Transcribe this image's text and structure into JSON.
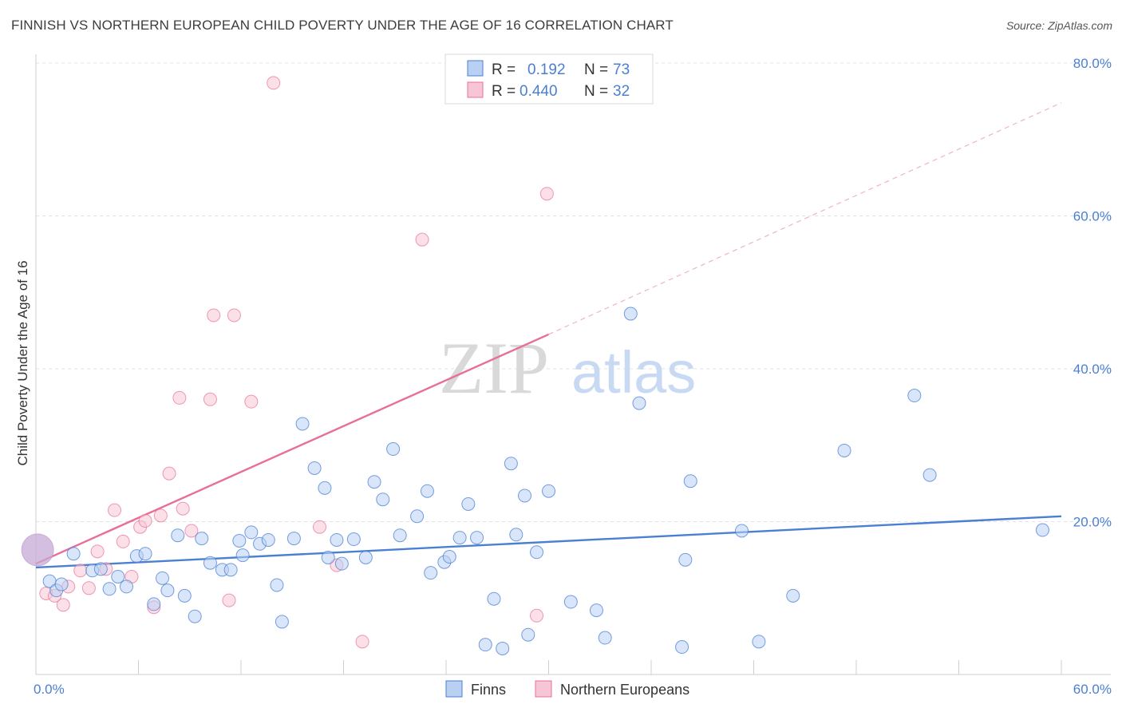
{
  "header": {
    "title": "FINNISH VS NORTHERN EUROPEAN CHILD POVERTY UNDER THE AGE OF 16 CORRELATION CHART",
    "source": "Source: ZipAtlas.com"
  },
  "watermark": {
    "zip": "ZIP",
    "atlas": "atlas"
  },
  "legend": {
    "rows": [
      {
        "r_label": "R =",
        "r_value": "0.192",
        "n_label": "N =",
        "n_value": "73"
      },
      {
        "r_label": "R =",
        "r_value": "0.440",
        "n_label": "N =",
        "n_value": "32"
      }
    ]
  },
  "chart_data": {
    "type": "scatter",
    "title": "FINNISH VS NORTHERN EUROPEAN CHILD POVERTY UNDER THE AGE OF 16 CORRELATION CHART",
    "xlabel": "",
    "ylabel": "Child Poverty Under the Age of 16",
    "xlim": [
      0,
      60
    ],
    "ylim": [
      0,
      80
    ],
    "x_tick_labels": [
      "0.0%",
      "60.0%"
    ],
    "y_ticks": [
      20,
      40,
      60,
      80
    ],
    "y_tick_labels": [
      "20.0%",
      "40.0%",
      "60.0%",
      "80.0%"
    ],
    "grid": true,
    "legend_position": "bottom-center",
    "colors": {
      "finns": "#4a7fd4",
      "northern": "#e86f97",
      "finns_fill": "#b9d0f2",
      "northern_fill": "#f7c6d6"
    },
    "series": [
      {
        "name": "Finns",
        "r": 0.192,
        "n": 73,
        "trend": {
          "x0": 0,
          "y0": 14.0,
          "x1": 60,
          "y1": 20.7
        },
        "points": [
          [
            0.8,
            12.2
          ],
          [
            1.2,
            11.0
          ],
          [
            1.5,
            11.8
          ],
          [
            2.2,
            15.8
          ],
          [
            3.3,
            13.6
          ],
          [
            3.8,
            13.8
          ],
          [
            4.3,
            11.2
          ],
          [
            4.8,
            12.8
          ],
          [
            5.3,
            11.5
          ],
          [
            5.9,
            15.5
          ],
          [
            6.4,
            15.8
          ],
          [
            6.9,
            9.2
          ],
          [
            7.4,
            12.6
          ],
          [
            7.7,
            11.0
          ],
          [
            8.3,
            18.2
          ],
          [
            8.7,
            10.3
          ],
          [
            9.3,
            7.6
          ],
          [
            9.7,
            17.8
          ],
          [
            10.2,
            14.6
          ],
          [
            10.9,
            13.7
          ],
          [
            11.4,
            13.7
          ],
          [
            11.9,
            17.5
          ],
          [
            12.1,
            15.6
          ],
          [
            12.6,
            18.6
          ],
          [
            13.1,
            17.1
          ],
          [
            13.6,
            17.6
          ],
          [
            14.1,
            11.7
          ],
          [
            14.4,
            6.9
          ],
          [
            15.1,
            17.8
          ],
          [
            15.6,
            32.8
          ],
          [
            16.3,
            27.0
          ],
          [
            16.9,
            24.4
          ],
          [
            17.1,
            15.3
          ],
          [
            17.6,
            17.6
          ],
          [
            17.9,
            14.5
          ],
          [
            18.6,
            17.7
          ],
          [
            19.3,
            15.3
          ],
          [
            19.8,
            25.2
          ],
          [
            20.3,
            22.9
          ],
          [
            20.9,
            29.5
          ],
          [
            21.3,
            18.2
          ],
          [
            22.3,
            20.7
          ],
          [
            22.9,
            24.0
          ],
          [
            23.1,
            13.3
          ],
          [
            23.9,
            14.7
          ],
          [
            24.2,
            15.4
          ],
          [
            24.8,
            17.9
          ],
          [
            25.3,
            22.3
          ],
          [
            25.8,
            17.9
          ],
          [
            26.3,
            3.9
          ],
          [
            26.8,
            9.9
          ],
          [
            27.3,
            3.4
          ],
          [
            27.8,
            27.6
          ],
          [
            28.1,
            18.3
          ],
          [
            28.6,
            23.4
          ],
          [
            28.8,
            5.2
          ],
          [
            29.3,
            16.0
          ],
          [
            30.0,
            24.0
          ],
          [
            31.3,
            9.5
          ],
          [
            32.8,
            8.4
          ],
          [
            33.3,
            4.8
          ],
          [
            34.8,
            47.2
          ],
          [
            35.3,
            35.5
          ],
          [
            37.8,
            3.6
          ],
          [
            38.0,
            15.0
          ],
          [
            38.3,
            25.3
          ],
          [
            41.3,
            18.8
          ],
          [
            42.3,
            4.3
          ],
          [
            44.3,
            10.3
          ],
          [
            47.3,
            29.3
          ],
          [
            51.4,
            36.5
          ],
          [
            52.3,
            26.1
          ],
          [
            58.9,
            18.9
          ]
        ]
      },
      {
        "name": "Northern Europeans",
        "r": 0.44,
        "n": 32,
        "trend": {
          "x0": 0,
          "y0": 14.5,
          "x1": 30,
          "y1": 44.5
        },
        "trend_dashed": {
          "x0": 30,
          "y0": 44.5,
          "x1": 60,
          "y1": 74.8
        },
        "points": [
          [
            0.6,
            10.6
          ],
          [
            1.1,
            10.3
          ],
          [
            1.6,
            9.1
          ],
          [
            1.9,
            11.5
          ],
          [
            2.6,
            13.6
          ],
          [
            3.1,
            11.3
          ],
          [
            3.6,
            16.1
          ],
          [
            4.1,
            13.8
          ],
          [
            4.6,
            21.5
          ],
          [
            5.1,
            17.4
          ],
          [
            5.6,
            12.8
          ],
          [
            6.1,
            19.3
          ],
          [
            6.4,
            20.1
          ],
          [
            6.9,
            8.8
          ],
          [
            7.3,
            20.8
          ],
          [
            7.8,
            26.3
          ],
          [
            8.4,
            36.2
          ],
          [
            8.6,
            21.7
          ],
          [
            9.1,
            18.8
          ],
          [
            10.2,
            36.0
          ],
          [
            10.4,
            47.0
          ],
          [
            11.3,
            9.7
          ],
          [
            11.6,
            47.0
          ],
          [
            12.6,
            35.7
          ],
          [
            13.9,
            77.4
          ],
          [
            16.6,
            19.3
          ],
          [
            17.6,
            14.3
          ],
          [
            19.1,
            4.3
          ],
          [
            22.6,
            56.9
          ],
          [
            29.3,
            7.7
          ],
          [
            29.9,
            62.9
          ],
          [
            0.1,
            16.3
          ]
        ]
      }
    ]
  },
  "bottom_legend": {
    "items": [
      {
        "label": "Finns"
      },
      {
        "label": "Northern Europeans"
      }
    ]
  }
}
